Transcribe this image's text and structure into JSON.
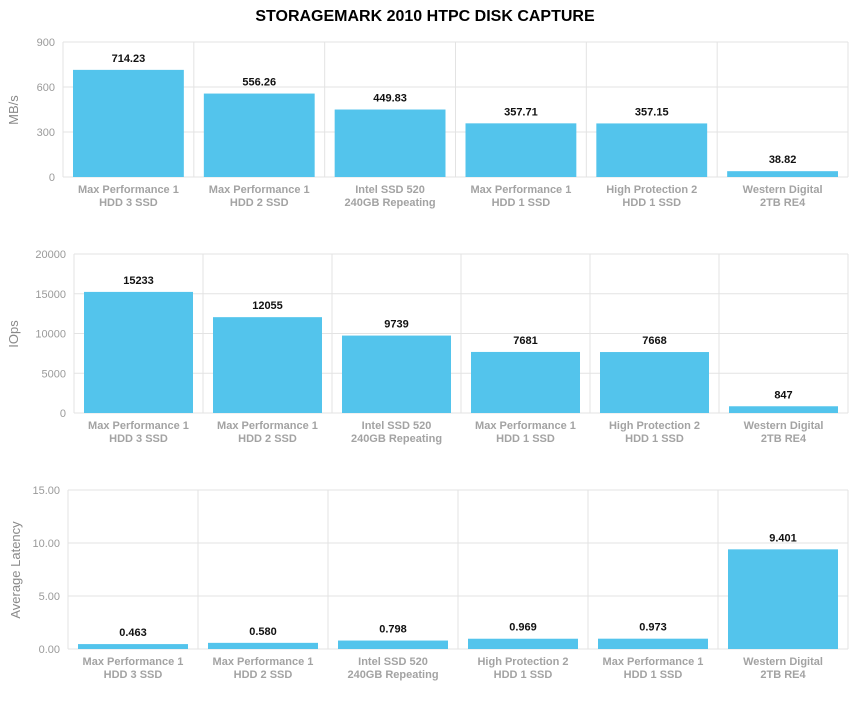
{
  "title": "STORAGEMARK 2010 HTPC DISK CAPTURE",
  "colors": {
    "bar": "#53c4ec",
    "grid": "#e3e3e3",
    "tick": "#9a9a9a"
  },
  "chart_data": [
    {
      "type": "bar",
      "ylabel": "MB/s",
      "ylim": [
        0,
        900
      ],
      "yticks": [
        "0",
        "300",
        "600",
        "900"
      ],
      "categories": [
        [
          "Max Performance 1",
          "HDD 3 SSD"
        ],
        [
          "Max Performance 1",
          "HDD 2 SSD"
        ],
        [
          "Intel SSD 520",
          "240GB Repeating"
        ],
        [
          "Max Performance 1",
          "HDD 1 SSD"
        ],
        [
          "High Protection 2",
          "HDD 1 SSD"
        ],
        [
          "Western Digital",
          "2TB RE4"
        ]
      ],
      "values": [
        714.23,
        556.26,
        449.83,
        357.71,
        357.15,
        38.82
      ],
      "value_labels": [
        "714.23",
        "556.26",
        "449.83",
        "357.71",
        "357.15",
        "38.82"
      ]
    },
    {
      "type": "bar",
      "ylabel": "IOps",
      "ylim": [
        0,
        20000
      ],
      "yticks": [
        "0",
        "5000",
        "10000",
        "15000",
        "20000"
      ],
      "categories": [
        [
          "Max Performance 1",
          "HDD 3 SSD"
        ],
        [
          "Max Performance 1",
          "HDD 2 SSD"
        ],
        [
          "Intel SSD 520",
          "240GB Repeating"
        ],
        [
          "Max Performance 1",
          "HDD 1 SSD"
        ],
        [
          "High Protection 2",
          "HDD 1 SSD"
        ],
        [
          "Western Digital",
          "2TB RE4"
        ]
      ],
      "values": [
        15233,
        12055,
        9739,
        7681,
        7668,
        847
      ],
      "value_labels": [
        "15233",
        "12055",
        "9739",
        "7681",
        "7668",
        "847"
      ]
    },
    {
      "type": "bar",
      "ylabel": "Average Latency",
      "ylim": [
        0,
        15
      ],
      "yticks": [
        "0.00",
        "5.00",
        "10.00",
        "15.00"
      ],
      "categories": [
        [
          "Max Performance 1",
          "HDD 3 SSD"
        ],
        [
          "Max Performance 1",
          "HDD 2 SSD"
        ],
        [
          "Intel SSD 520",
          "240GB Repeating"
        ],
        [
          "High Protection 2",
          "HDD 1 SSD"
        ],
        [
          "Max Performance 1",
          "HDD 1 SSD"
        ],
        [
          "Western Digital",
          "2TB RE4"
        ]
      ],
      "values": [
        0.463,
        0.58,
        0.798,
        0.969,
        0.973,
        9.401
      ],
      "value_labels": [
        "0.463",
        "0.580",
        "0.798",
        "0.969",
        "0.973",
        "9.401"
      ]
    }
  ]
}
